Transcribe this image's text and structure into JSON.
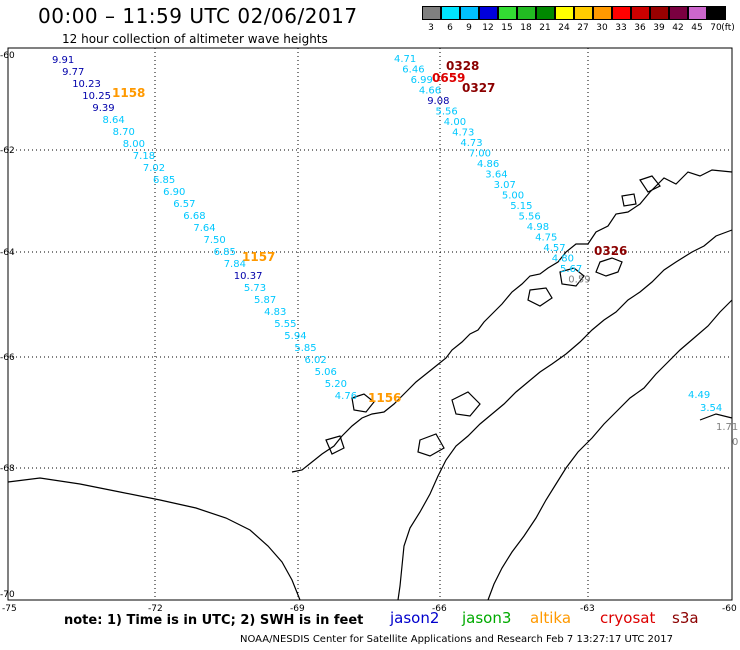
{
  "header": {
    "title": "00:00 – 11:59 UTC 02/06/2017",
    "subtitle": "12 hour collection of altimeter wave heights"
  },
  "legend": {
    "unit": "(ft)",
    "items": [
      {
        "label": "3",
        "color": "#808080"
      },
      {
        "label": "6",
        "color": "#00e5ff"
      },
      {
        "label": "9",
        "color": "#00bfff"
      },
      {
        "label": "12",
        "color": "#0000dd"
      },
      {
        "label": "15",
        "color": "#33dd33"
      },
      {
        "label": "18",
        "color": "#22bb22"
      },
      {
        "label": "21",
        "color": "#008800"
      },
      {
        "label": "24",
        "color": "#ffff00"
      },
      {
        "label": "27",
        "color": "#ffcc00"
      },
      {
        "label": "30",
        "color": "#ff9900"
      },
      {
        "label": "33",
        "color": "#ff0000"
      },
      {
        "label": "36",
        "color": "#cc0000"
      },
      {
        "label": "39",
        "color": "#990000"
      },
      {
        "label": "42",
        "color": "#7a0040"
      },
      {
        "label": "45",
        "color": "#cc66cc"
      },
      {
        "label": "70",
        "color": "#000000"
      }
    ]
  },
  "axes": {
    "lat_labels": [
      "-60",
      "-62",
      "-64",
      "-66",
      "-68",
      "-70"
    ],
    "lon_labels": [
      "-75",
      "-72",
      "-69",
      "-66",
      "-63",
      "-60"
    ]
  },
  "track_times": {
    "t1158": "1158",
    "t1157": "1157",
    "t1156": "1156",
    "t0328": "0328",
    "t0659": "0659",
    "t0327": "0327",
    "t0326": "0326"
  },
  "track_west": [
    "9.91",
    "9.77",
    "10.23",
    "10.25",
    "9.39",
    "8.64",
    "8.70",
    "8.00",
    "7.18",
    "7.02",
    "6.85",
    "6.90",
    "6.57",
    "6.68",
    "7.64",
    "7.50",
    "6.85",
    "7.84",
    "10.37",
    "5.73",
    "5.87",
    "4.83",
    "5.55",
    "5.94",
    "5.85",
    "6.02",
    "5.06",
    "5.20",
    "4.76"
  ],
  "track_east": [
    "4.71",
    "6.46",
    "6.99",
    "4.66",
    "9.08",
    "5.56",
    "4.00",
    "4.73",
    "4.73",
    "7.00",
    "4.86",
    "3.64",
    "3.07",
    "5.00",
    "5.15",
    "5.56",
    "4.98",
    "4.75",
    "4.57",
    "4.80",
    "5.67",
    "0.59"
  ],
  "track_right": [
    "4.49",
    "3.54",
    "1.71",
    "0"
  ],
  "colors": {
    "dark_blue": "#0000aa",
    "light_blue": "#00c8ff",
    "gray": "#808080",
    "orange": "#ff9900",
    "dark_red": "#8b0000",
    "red": "#dd0000"
  },
  "footer": {
    "note": "note:  1) Time is in UTC;  2) SWH is in feet",
    "satellites": [
      {
        "name": "jason2",
        "color": "#0000cc"
      },
      {
        "name": "jason3",
        "color": "#00aa00"
      },
      {
        "name": "altika",
        "color": "#ff9900"
      },
      {
        "name": "cryosat",
        "color": "#dd0000"
      },
      {
        "name": "s3a",
        "color": "#8b0000"
      }
    ],
    "credit": "NOAA/NESDIS Center for Satellite Applications and Research     Feb  7 13:27:17 UTC 2017"
  }
}
